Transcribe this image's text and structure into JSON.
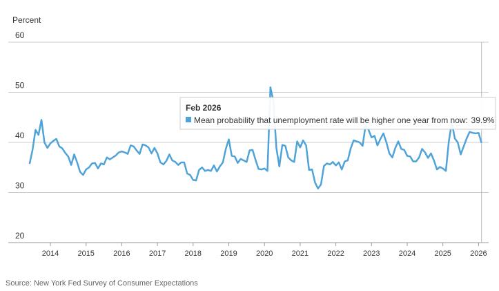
{
  "chart_data": {
    "type": "line",
    "y_label": "Percent",
    "source": "Source: New York Fed Survey of Consumer Expectations",
    "x": [
      "2013-06",
      "2013-07",
      "2013-08",
      "2013-09",
      "2013-10",
      "2013-11",
      "2013-12",
      "2014-01",
      "2014-02",
      "2014-03",
      "2014-04",
      "2014-05",
      "2014-06",
      "2014-07",
      "2014-08",
      "2014-09",
      "2014-10",
      "2014-11",
      "2014-12",
      "2015-01",
      "2015-02",
      "2015-03",
      "2015-04",
      "2015-05",
      "2015-06",
      "2015-07",
      "2015-08",
      "2015-09",
      "2015-10",
      "2015-11",
      "2015-12",
      "2016-01",
      "2016-02",
      "2016-03",
      "2016-04",
      "2016-05",
      "2016-06",
      "2016-07",
      "2016-08",
      "2016-09",
      "2016-10",
      "2016-11",
      "2016-12",
      "2017-01",
      "2017-02",
      "2017-03",
      "2017-04",
      "2017-05",
      "2017-06",
      "2017-07",
      "2017-08",
      "2017-09",
      "2017-10",
      "2017-11",
      "2017-12",
      "2018-01",
      "2018-02",
      "2018-03",
      "2018-04",
      "2018-05",
      "2018-06",
      "2018-07",
      "2018-08",
      "2018-09",
      "2018-10",
      "2018-11",
      "2018-12",
      "2019-01",
      "2019-02",
      "2019-03",
      "2019-04",
      "2019-05",
      "2019-06",
      "2019-07",
      "2019-08",
      "2019-09",
      "2019-10",
      "2019-11",
      "2019-12",
      "2020-01",
      "2020-02",
      "2020-03",
      "2020-04",
      "2020-05",
      "2020-06",
      "2020-07",
      "2020-08",
      "2020-09",
      "2020-10",
      "2020-11",
      "2020-12",
      "2021-01",
      "2021-02",
      "2021-03",
      "2021-04",
      "2021-05",
      "2021-06",
      "2021-07",
      "2021-08",
      "2021-09",
      "2021-10",
      "2021-11",
      "2021-12",
      "2022-01",
      "2022-02",
      "2022-03",
      "2022-04",
      "2022-05",
      "2022-06",
      "2022-07",
      "2022-08",
      "2022-09",
      "2022-10",
      "2022-11",
      "2022-12",
      "2023-01",
      "2023-02",
      "2023-03",
      "2023-04",
      "2023-05",
      "2023-06",
      "2023-07",
      "2023-08",
      "2023-09",
      "2023-10",
      "2023-11",
      "2023-12",
      "2024-01",
      "2024-02",
      "2024-03",
      "2024-04",
      "2024-05",
      "2024-06",
      "2024-07",
      "2024-08",
      "2024-09",
      "2024-10",
      "2024-11",
      "2024-12",
      "2025-01",
      "2025-02",
      "2025-03",
      "2025-04",
      "2025-05",
      "2025-06",
      "2025-07",
      "2025-08",
      "2025-09",
      "2025-10",
      "2025-11",
      "2025-12",
      "2026-01",
      "2026-02"
    ],
    "series": [
      {
        "name": "Mean probability that unemployment rate will be higher one year from now",
        "color": "#4fa3d9",
        "values": [
          35.7,
          38.5,
          42.5,
          41.5,
          44.5,
          40.0,
          38.9,
          39.8,
          40.3,
          40.7,
          39.2,
          38.8,
          37.9,
          37.2,
          35.5,
          37.6,
          36.0,
          34.1,
          33.5,
          34.6,
          35.0,
          35.8,
          35.9,
          34.8,
          35.8,
          35.6,
          37.0,
          36.6,
          37.0,
          37.4,
          38.0,
          38.2,
          38.0,
          37.7,
          39.4,
          39.2,
          38.4,
          37.7,
          39.6,
          39.4,
          39.0,
          37.8,
          38.9,
          37.8,
          36.0,
          35.6,
          36.3,
          37.6,
          36.4,
          36.1,
          35.5,
          36.0,
          36.0,
          33.8,
          33.5,
          32.5,
          32.4,
          34.5,
          35.0,
          34.3,
          34.5,
          34.3,
          35.4,
          34.2,
          35.2,
          36.0,
          38.7,
          40.6,
          37.3,
          37.2,
          35.9,
          36.7,
          36.4,
          36.1,
          38.4,
          38.5,
          36.5,
          34.7,
          34.6,
          34.8,
          34.3,
          51.0,
          48.2,
          38.9,
          35.2,
          39.5,
          39.3,
          37.0,
          36.4,
          36.1,
          40.2,
          39.0,
          40.4,
          39.4,
          34.5,
          34.6,
          32.0,
          30.8,
          31.6,
          35.3,
          35.8,
          35.6,
          36.1,
          35.4,
          36.0,
          34.6,
          36.2,
          36.4,
          38.8,
          40.4,
          40.2,
          40.0,
          39.3,
          43.4,
          42.5,
          41.0,
          41.3,
          39.4,
          40.7,
          41.8,
          40.0,
          37.8,
          37.0,
          38.9,
          40.2,
          38.7,
          38.5,
          37.3,
          37.2,
          36.2,
          36.2,
          37.0,
          38.7,
          38.0,
          36.9,
          37.8,
          36.4,
          34.6,
          35.1,
          34.8,
          34.3,
          40.2,
          44.0,
          40.8,
          40.0,
          37.6,
          39.2,
          40.8,
          42.1,
          41.9,
          41.8,
          41.9,
          39.9
        ]
      }
    ],
    "ylim": [
      20,
      60
    ],
    "yticks": [
      20,
      30,
      40,
      50,
      60
    ],
    "xticks": [
      2014,
      2015,
      2016,
      2017,
      2018,
      2019,
      2020,
      2021,
      2022,
      2023,
      2024,
      2025,
      2026
    ],
    "grid": true,
    "tooltip": {
      "title": "Feb 2026",
      "value_label": "39.9%"
    }
  }
}
